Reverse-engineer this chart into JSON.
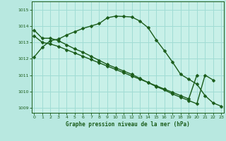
{
  "title": "Graphe pression niveau de la mer (hPa)",
  "bg_color": "#b8e8e0",
  "plot_bg_color": "#c8f0e8",
  "grid_color": "#a0dcd4",
  "line_color": "#1a5c1a",
  "xlim": [
    -0.3,
    23.3
  ],
  "ylim": [
    1008.7,
    1015.5
  ],
  "yticks": [
    1009,
    1010,
    1011,
    1012,
    1013,
    1014,
    1015
  ],
  "xticks": [
    0,
    1,
    2,
    3,
    4,
    5,
    6,
    7,
    8,
    9,
    10,
    11,
    12,
    13,
    14,
    15,
    16,
    17,
    18,
    19,
    20,
    21,
    22,
    23
  ],
  "series1_x": [
    0,
    1,
    2,
    3,
    4,
    5,
    6,
    7,
    8,
    9,
    10,
    11,
    12,
    13,
    14,
    15,
    16,
    17,
    18,
    19,
    20,
    21,
    22,
    23
  ],
  "series1_y": [
    1012.1,
    1012.7,
    1013.1,
    1013.2,
    1013.45,
    1013.65,
    1013.85,
    1014.0,
    1014.15,
    1014.5,
    1014.6,
    1014.58,
    1014.55,
    1014.3,
    1013.9,
    1013.15,
    1012.5,
    1011.8,
    1011.05,
    1010.75,
    1010.45,
    1009.75,
    1009.3,
    1009.1
  ],
  "series2_x": [
    0,
    1,
    2,
    3,
    4,
    5,
    6,
    7,
    8,
    9,
    10,
    11,
    12,
    13,
    14,
    15,
    16,
    17,
    18,
    19,
    20,
    21,
    22,
    23
  ],
  "series2_y": [
    1013.75,
    1013.25,
    1013.25,
    1013.1,
    1012.85,
    1012.6,
    1012.4,
    1012.15,
    1011.9,
    1011.65,
    1011.45,
    1011.25,
    1011.05,
    1010.8,
    1010.55,
    1010.3,
    1010.1,
    1009.85,
    1009.65,
    1009.45,
    1009.25,
    1011.0,
    1010.7,
    null
  ],
  "series3_x": [
    0,
    1,
    2,
    3,
    4,
    5,
    6,
    7,
    8,
    9,
    10,
    11,
    12,
    13,
    14,
    15,
    16,
    17,
    18,
    19,
    20,
    21,
    22,
    23
  ],
  "series3_y": [
    1013.4,
    1013.0,
    1012.9,
    1012.75,
    1012.55,
    1012.35,
    1012.15,
    1011.95,
    1011.75,
    1011.55,
    1011.35,
    1011.15,
    1010.95,
    1010.75,
    1010.55,
    1010.35,
    1010.15,
    1009.95,
    1009.75,
    1009.55,
    1011.0,
    null,
    null,
    null
  ]
}
